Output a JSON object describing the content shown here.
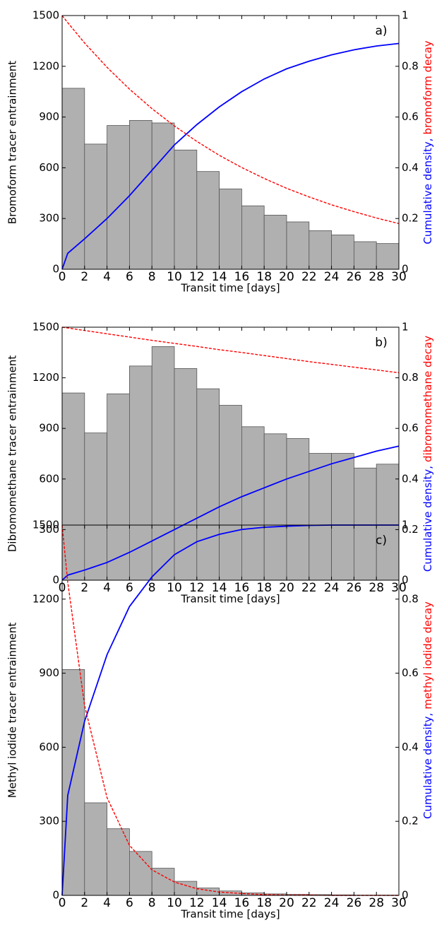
{
  "chart_data": [
    {
      "type": "histogram",
      "annotation": "a)",
      "ylabel": "Bromoform tracer entrainment",
      "xlabel": "Transit time [days]",
      "bins": [
        0,
        2,
        4,
        6,
        8,
        10,
        12,
        14,
        16,
        18,
        20,
        22,
        24,
        26,
        28,
        30
      ],
      "counts": [
        1070,
        740,
        850,
        880,
        865,
        705,
        578,
        475,
        375,
        320,
        280,
        228,
        203,
        163,
        152
      ],
      "color": "#b0b0b0",
      "xlim": [
        0,
        30
      ],
      "xticks": [
        0,
        2,
        4,
        6,
        8,
        10,
        12,
        14,
        16,
        18,
        20,
        22,
        24,
        26,
        28,
        30
      ],
      "ylim": [
        0,
        1500
      ],
      "yticks": [
        0,
        300,
        600,
        900,
        1200,
        1500
      ],
      "y2lim": [
        0,
        1
      ],
      "y2ticks": [
        0,
        0.2,
        0.4,
        0.6,
        0.8,
        1
      ],
      "y2label": [
        {
          "text": "Cumulative density,",
          "color": "#0000ff"
        },
        {
          "text": "bromoform decay",
          "color": "#ff0000"
        }
      ],
      "series": [
        {
          "type": "line",
          "axis": "y2",
          "color": "#0000ff",
          "dashed": false,
          "x": [
            0,
            0.5,
            2,
            4,
            6,
            8,
            10,
            12,
            14,
            16,
            18,
            20,
            22,
            24,
            26,
            28,
            30
          ],
          "values": [
            0,
            0.063,
            0.12,
            0.2,
            0.29,
            0.39,
            0.49,
            0.57,
            0.64,
            0.7,
            0.75,
            0.79,
            0.82,
            0.845,
            0.865,
            0.88,
            0.89
          ]
        },
        {
          "type": "line",
          "axis": "y2",
          "color": "#ff0000",
          "dashed": true,
          "x": [
            0,
            0.5,
            2,
            4,
            6,
            8,
            10,
            12,
            14,
            16,
            18,
            20,
            22,
            24,
            26,
            28,
            30
          ],
          "values": [
            1,
            0.972,
            0.892,
            0.796,
            0.71,
            0.633,
            0.565,
            0.504,
            0.449,
            0.401,
            0.358,
            0.319,
            0.285,
            0.254,
            0.227,
            0.202,
            0.18
          ]
        }
      ]
    },
    {
      "type": "histogram",
      "annotation": "b)",
      "ylabel": "Dibromomethane tracer entrainment",
      "xlabel": "Transit time [days]",
      "bins": [
        0,
        2,
        4,
        6,
        8,
        10,
        12,
        14,
        16,
        18,
        20,
        22,
        24,
        26,
        28,
        30
      ],
      "counts": [
        1110,
        873,
        1105,
        1270,
        1385,
        1255,
        1135,
        1037,
        910,
        868,
        840,
        752,
        752,
        665,
        688
      ],
      "color": "#b0b0b0",
      "xlim": [
        0,
        30
      ],
      "xticks": [
        0,
        2,
        4,
        6,
        8,
        10,
        12,
        14,
        16,
        18,
        20,
        22,
        24,
        26,
        28,
        30
      ],
      "ylim": [
        0,
        1500
      ],
      "yticks": [
        0,
        300,
        600,
        900,
        1200,
        1500
      ],
      "y2lim": [
        0,
        1
      ],
      "y2ticks": [
        0,
        0.2,
        0.4,
        0.6,
        0.8,
        1
      ],
      "y2label": [
        {
          "text": "Cumulative density,",
          "color": "#0000ff"
        },
        {
          "text": "dibromomethane decay",
          "color": "#ff0000"
        }
      ],
      "series": [
        {
          "type": "line",
          "axis": "y2",
          "color": "#0000ff",
          "dashed": false,
          "x": [
            0,
            0.5,
            2,
            4,
            6,
            8,
            10,
            12,
            14,
            16,
            18,
            20,
            22,
            24,
            26,
            28,
            30
          ],
          "values": [
            0,
            0.02,
            0.04,
            0.07,
            0.11,
            0.155,
            0.2,
            0.245,
            0.29,
            0.33,
            0.365,
            0.4,
            0.43,
            0.46,
            0.485,
            0.51,
            0.53
          ]
        },
        {
          "type": "line",
          "axis": "y2",
          "color": "#ff0000",
          "dashed": true,
          "x": [
            0,
            0.5,
            2,
            4,
            6,
            8,
            10,
            12,
            14,
            16,
            18,
            20,
            22,
            24,
            26,
            28,
            30
          ],
          "values": [
            1,
            0.997,
            0.987,
            0.974,
            0.961,
            0.948,
            0.936,
            0.924,
            0.911,
            0.9,
            0.888,
            0.876,
            0.864,
            0.853,
            0.842,
            0.831,
            0.82
          ]
        }
      ]
    },
    {
      "type": "histogram",
      "annotation": "c)",
      "ylabel": "Methyl iodide tracer entrainment",
      "xlabel": "Transit time [days]",
      "bins": [
        0,
        2,
        4,
        6,
        8,
        10,
        12,
        14,
        16,
        18,
        20,
        22,
        24,
        26,
        28,
        30
      ],
      "counts": [
        915,
        375,
        270,
        178,
        110,
        57,
        30,
        18,
        10,
        6,
        4,
        3,
        2,
        1,
        1
      ],
      "color": "#b0b0b0",
      "xlim": [
        0,
        30
      ],
      "xticks": [
        0,
        2,
        4,
        6,
        8,
        10,
        12,
        14,
        16,
        18,
        20,
        22,
        24,
        26,
        28,
        30
      ],
      "ylim": [
        0,
        1500
      ],
      "yticks": [
        0,
        300,
        600,
        900,
        1200,
        1500
      ],
      "y2lim": [
        0,
        1
      ],
      "y2ticks": [
        0,
        0.2,
        0.4,
        0.6,
        0.8,
        1
      ],
      "y2label": [
        {
          "text": "Cumulative density,",
          "color": "#0000ff"
        },
        {
          "text": "methyl iodide decay",
          "color": "#ff0000"
        }
      ],
      "series": [
        {
          "type": "line",
          "axis": "y2",
          "color": "#0000ff",
          "dashed": false,
          "x": [
            0,
            0.5,
            2,
            4,
            6,
            8,
            10,
            12,
            14,
            16,
            18,
            20,
            22,
            24,
            26,
            28,
            30
          ],
          "values": [
            0,
            0.27,
            0.47,
            0.65,
            0.78,
            0.86,
            0.92,
            0.955,
            0.975,
            0.988,
            0.994,
            0.997,
            0.999,
            1,
            1,
            1,
            1
          ]
        },
        {
          "type": "line",
          "axis": "y2",
          "color": "#ff0000",
          "dashed": true,
          "x": [
            0,
            0.5,
            2,
            4,
            6,
            8,
            10,
            12,
            14,
            16,
            18,
            20,
            22,
            24,
            26,
            28,
            30
          ],
          "values": [
            1,
            0.846,
            0.513,
            0.264,
            0.135,
            0.069,
            0.036,
            0.018,
            0.009,
            0.005,
            0.002,
            0.001,
            0.001,
            0,
            0,
            0,
            0
          ]
        }
      ]
    }
  ]
}
